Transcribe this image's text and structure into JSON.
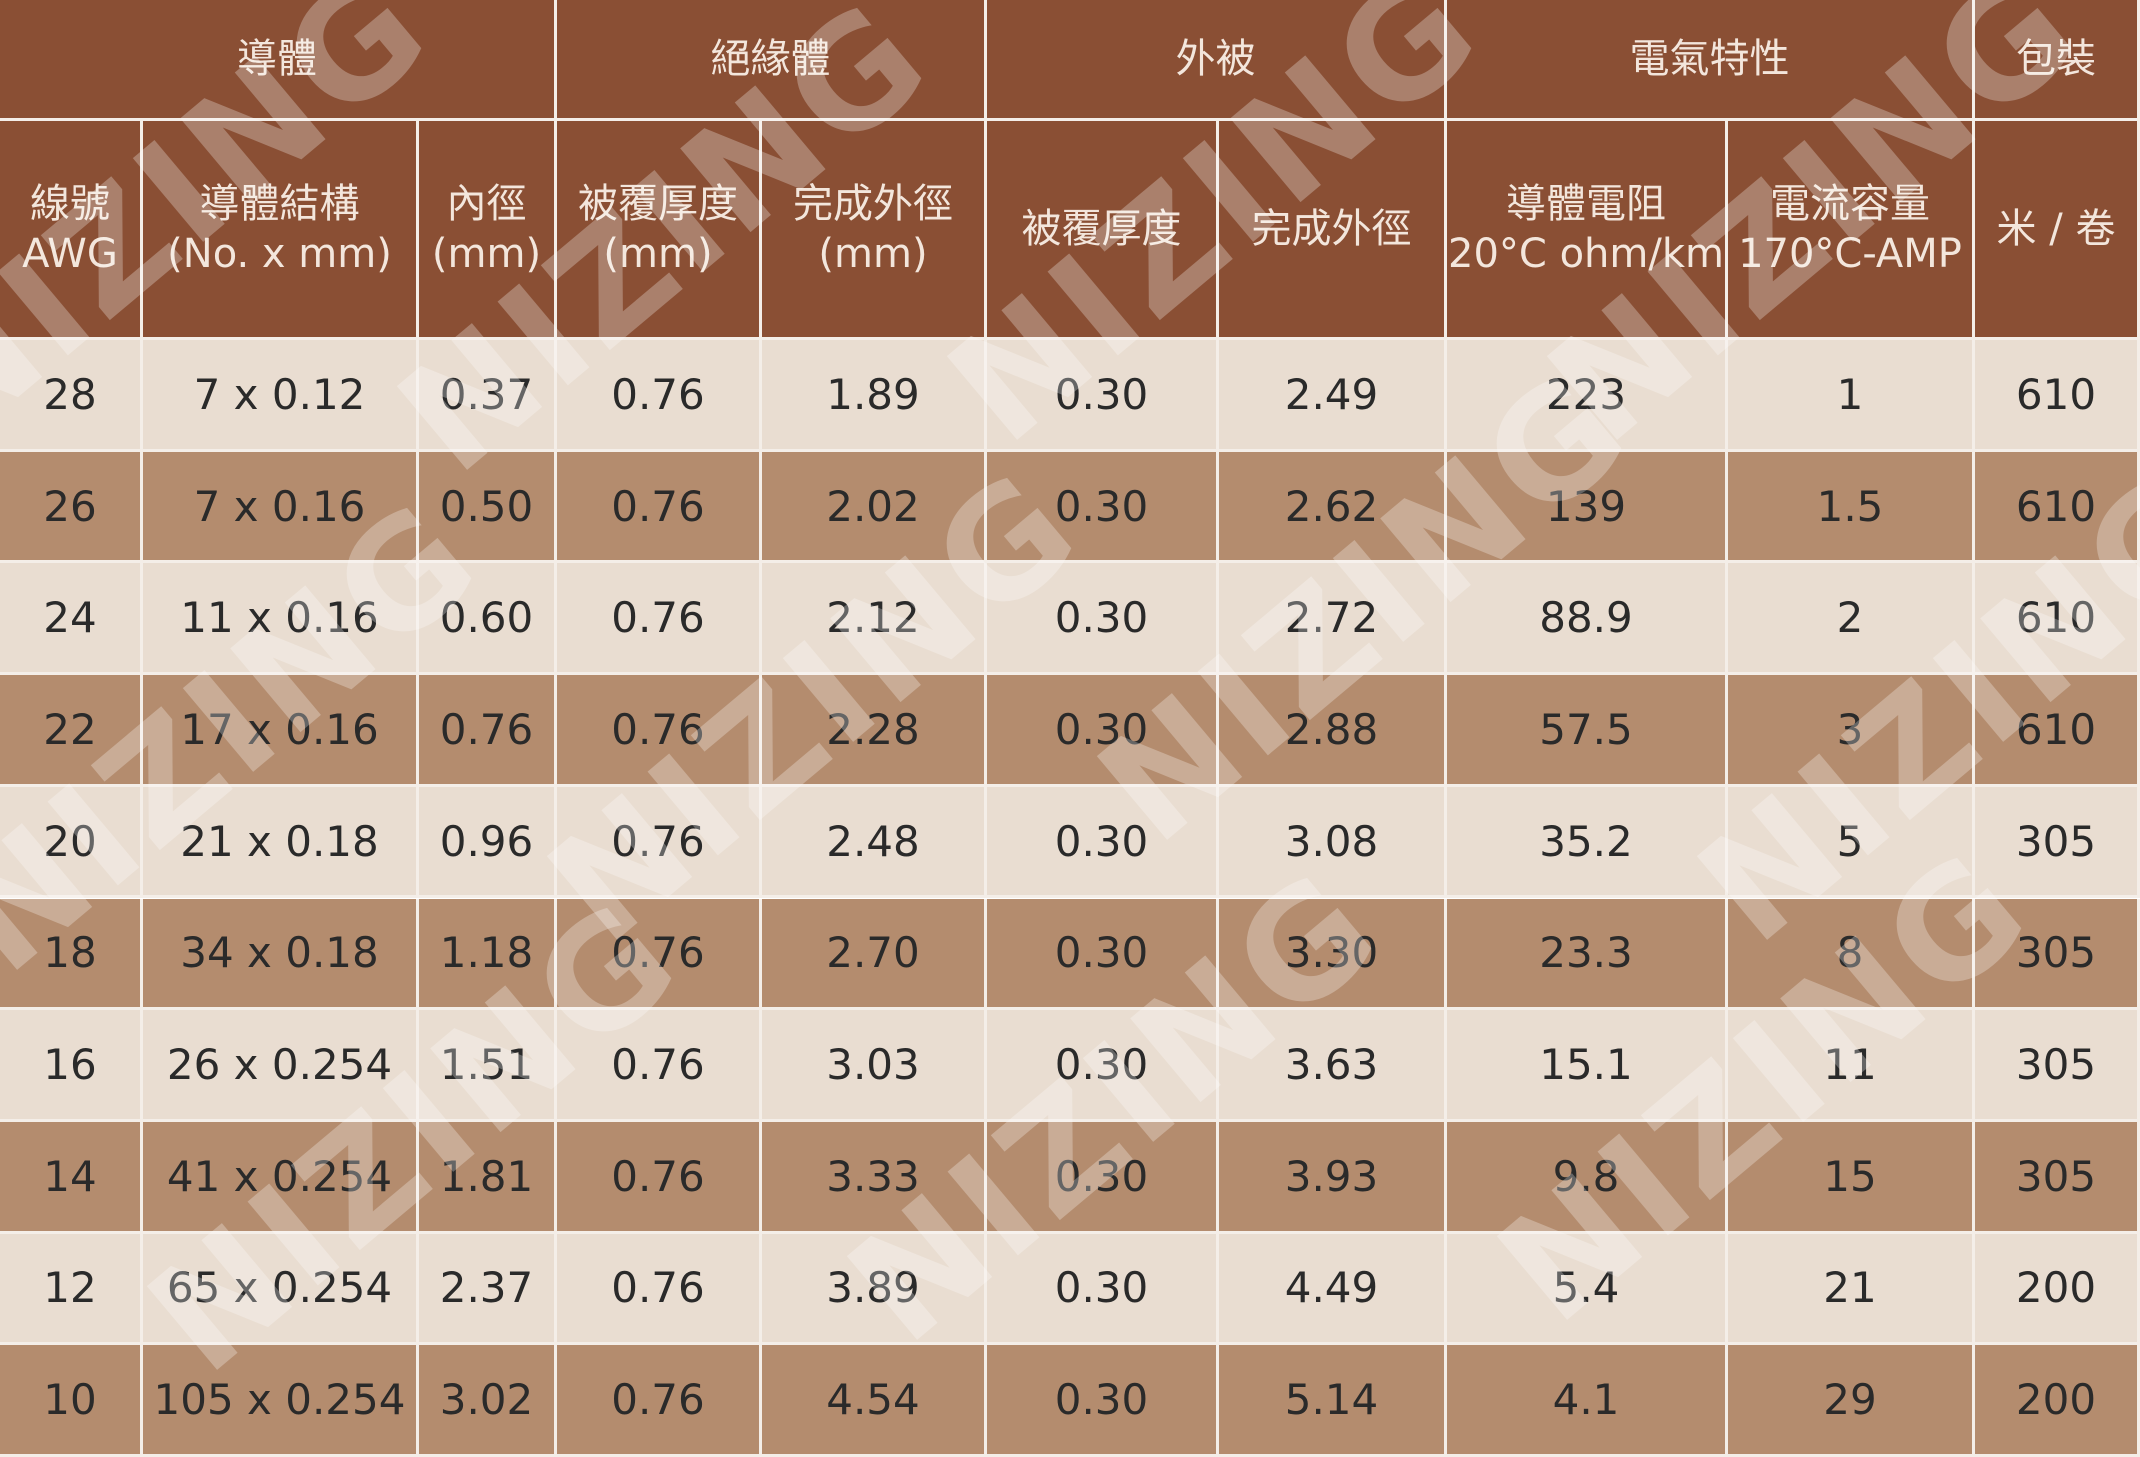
{
  "table": {
    "groups": [
      "導體",
      "絕緣體",
      "外被",
      "電氣特性",
      "包裝"
    ],
    "group_spans": [
      3,
      2,
      2,
      2,
      1
    ],
    "headers": [
      [
        "線號",
        "AWG"
      ],
      [
        "導體結構",
        "(No. x mm)"
      ],
      [
        "內徑",
        "(mm)"
      ],
      [
        "被覆厚度",
        "(mm)"
      ],
      [
        "完成外徑",
        "(mm)"
      ],
      [
        "被覆厚度"
      ],
      [
        "完成外徑"
      ],
      [
        "導體電阻",
        "20°C ohm/km"
      ],
      [
        "電流容量",
        "170°C-AMP"
      ],
      [
        "米 / 卷"
      ]
    ],
    "rows": [
      [
        "28",
        "7 x 0.12",
        "0.37",
        "0.76",
        "1.89",
        "0.30",
        "2.49",
        "223",
        "1",
        "610"
      ],
      [
        "26",
        "7 x 0.16",
        "0.50",
        "0.76",
        "2.02",
        "0.30",
        "2.62",
        "139",
        "1.5",
        "610"
      ],
      [
        "24",
        "11 x 0.16",
        "0.60",
        "0.76",
        "2.12",
        "0.30",
        "2.72",
        "88.9",
        "2",
        "610"
      ],
      [
        "22",
        "17 x 0.16",
        "0.76",
        "0.76",
        "2.28",
        "0.30",
        "2.88",
        "57.5",
        "3",
        "610"
      ],
      [
        "20",
        "21 x 0.18",
        "0.96",
        "0.76",
        "2.48",
        "0.30",
        "3.08",
        "35.2",
        "5",
        "305"
      ],
      [
        "18",
        "34 x 0.18",
        "1.18",
        "0.76",
        "2.70",
        "0.30",
        "3.30",
        "23.3",
        "8",
        "305"
      ],
      [
        "16",
        "26 x 0.254",
        "1.51",
        "0.76",
        "3.03",
        "0.30",
        "3.63",
        "15.1",
        "11",
        "305"
      ],
      [
        "14",
        "41 x 0.254",
        "1.81",
        "0.76",
        "3.33",
        "0.30",
        "3.93",
        "9.8",
        "15",
        "305"
      ],
      [
        "12",
        "65 x 0.254",
        "2.37",
        "0.76",
        "3.89",
        "0.30",
        "4.49",
        "5.4",
        "21",
        "200"
      ],
      [
        "10",
        "105 x 0.254",
        "3.02",
        "0.76",
        "4.54",
        "0.30",
        "5.14",
        "4.1",
        "29",
        "200"
      ]
    ]
  },
  "watermark": "NIZING"
}
